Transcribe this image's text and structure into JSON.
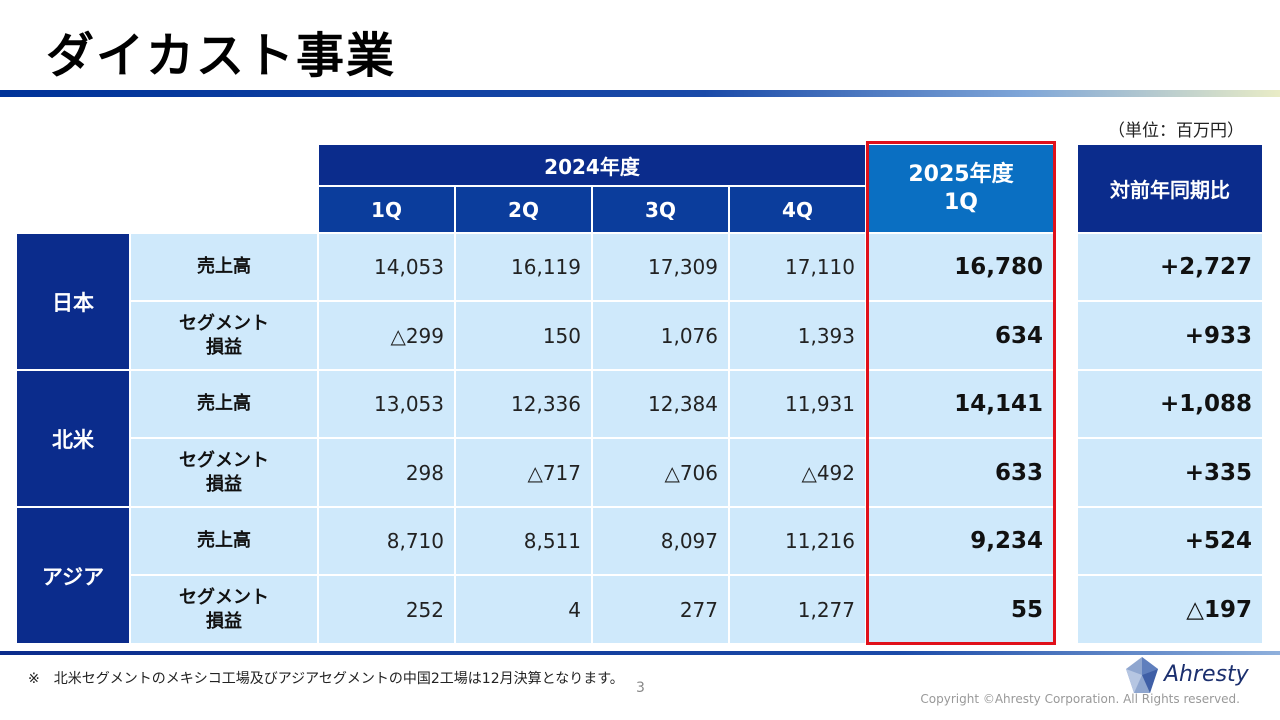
{
  "title": "ダイカスト事業",
  "unit": "（単位：百万円）",
  "header": {
    "fy2024": "2024年度",
    "quarters": [
      "1Q",
      "2Q",
      "3Q",
      "4Q"
    ],
    "fy2025_line1": "2025年度",
    "fy2025_line2": "1Q",
    "yoy": "対前年同期比"
  },
  "item_labels": {
    "sales": "売上高",
    "segment_line1": "セグメント",
    "segment_line2": "損益"
  },
  "regions": [
    {
      "name": "日本",
      "sales": {
        "q": [
          "14,053",
          "16,119",
          "17,309",
          "17,110"
        ],
        "fy2025": "16,780",
        "yoy": "+2,727"
      },
      "segment": {
        "q": [
          "△299",
          "150",
          "1,076",
          "1,393"
        ],
        "fy2025": "634",
        "yoy": "+933"
      }
    },
    {
      "name": "北米",
      "sales": {
        "q": [
          "13,053",
          "12,336",
          "12,384",
          "11,931"
        ],
        "fy2025": "14,141",
        "yoy": "+1,088"
      },
      "segment": {
        "q": [
          "298",
          "△717",
          "△706",
          "△492"
        ],
        "fy2025": "633",
        "yoy": "+335"
      }
    },
    {
      "name": "アジア",
      "sales": {
        "q": [
          "8,710",
          "8,511",
          "8,097",
          "11,216"
        ],
        "fy2025": "9,234",
        "yoy": "+524"
      },
      "segment": {
        "q": [
          "252",
          "4",
          "277",
          "1,277"
        ],
        "fy2025": "55",
        "yoy": "△197"
      }
    }
  ],
  "footnote": "※　北米セグメントのメキシコ工場及びアジアセグメントの中国2工場は12月決算となります。",
  "page_number": "3",
  "brand": "Ahresty",
  "copyright": "Copyright ©Ahresty Corporation. All Rights reserved.",
  "colors": {
    "header": "#0b2c8c",
    "highlight": "#0a6fc2",
    "cell": "#cfe9fb",
    "red_box": "#e0101a"
  }
}
